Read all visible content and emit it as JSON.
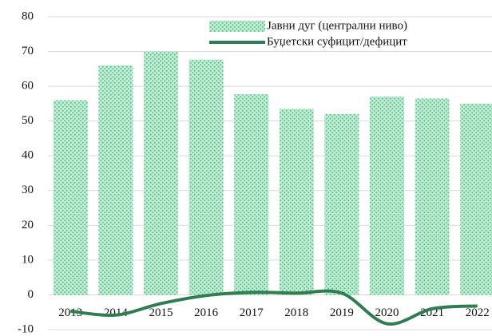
{
  "chart_data": {
    "type": "bar",
    "categories": [
      "2013",
      "2014",
      "2015",
      "2016",
      "2017",
      "2018",
      "2019",
      "2020",
      "2021",
      "2022"
    ],
    "series": [
      {
        "name": "Јавни дуг (централни ниво)",
        "type": "bar",
        "color": "#8fd8b0",
        "values": [
          56,
          66,
          70,
          67.7,
          57.7,
          53.5,
          52,
          57,
          56.5,
          55
        ]
      },
      {
        "name": "Буџетски суфицит/дефицит",
        "type": "line",
        "color": "#2f7d50",
        "values": [
          -4.7,
          -5.8,
          -2.5,
          -0.2,
          0.7,
          0.5,
          0.5,
          -8.3,
          -4,
          -3.2
        ]
      }
    ],
    "ylim": [
      -10,
      80
    ],
    "yticks": [
      -10,
      0,
      10,
      20,
      30,
      40,
      50,
      60,
      70,
      80
    ],
    "grid": true,
    "legend": "top-right"
  }
}
